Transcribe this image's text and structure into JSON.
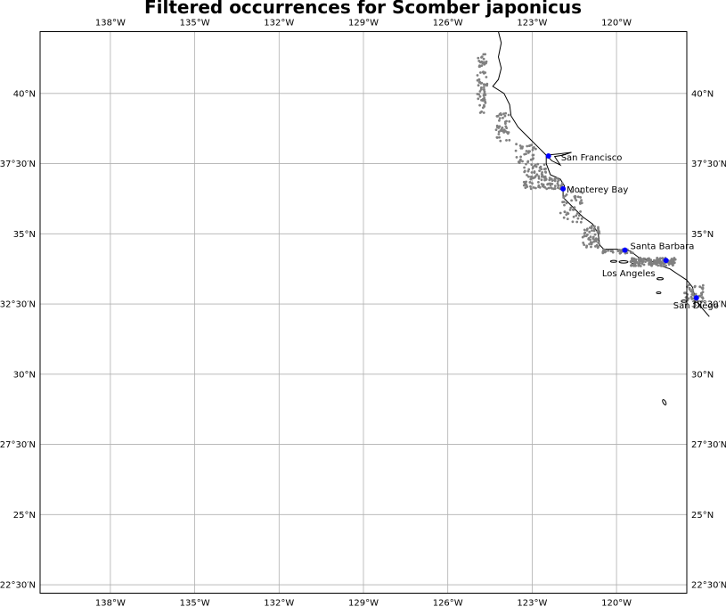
{
  "title": "Filtered occurrences for Scomber japonicus",
  "map": {
    "projection": "plate-carree",
    "extent": {
      "lon": [
        -140.5,
        -117.5
      ],
      "lat": [
        22.2,
        42.2
      ]
    },
    "gridlines": true,
    "grid_color": "#b0b0b0",
    "coast_color": "#000000",
    "occurrence_color": "#808080",
    "city_color": "#0000ff"
  },
  "axes": {
    "lon_ticks": [
      {
        "value": -138,
        "label": "138°W"
      },
      {
        "value": -135,
        "label": "135°W"
      },
      {
        "value": -132,
        "label": "132°W"
      },
      {
        "value": -129,
        "label": "129°W"
      },
      {
        "value": -126,
        "label": "126°W"
      },
      {
        "value": -123,
        "label": "123°W"
      },
      {
        "value": -120,
        "label": "120°W"
      }
    ],
    "lat_ticks": [
      {
        "value": 40,
        "label": "40°N"
      },
      {
        "value": 37.5,
        "label": "37°30′N"
      },
      {
        "value": 35,
        "label": "35°N"
      },
      {
        "value": 32.5,
        "label": "32°30′N"
      },
      {
        "value": 30,
        "label": "30°N"
      },
      {
        "value": 27.5,
        "label": "27°30′N"
      },
      {
        "value": 25,
        "label": "25°N"
      },
      {
        "value": 22.5,
        "label": "22°30′N"
      }
    ]
  },
  "cities": [
    {
      "name": "San Francisco",
      "lon": -122.42,
      "lat": 37.77
    },
    {
      "name": "Monterey Bay",
      "lon": -121.9,
      "lat": 36.6
    },
    {
      "name": "Santa Barbara",
      "lon": -119.7,
      "lat": 34.42
    },
    {
      "name": "Los Angeles",
      "lon": -118.24,
      "lat": 34.05
    },
    {
      "name": "San Diego",
      "lon": -117.16,
      "lat": 32.72
    }
  ],
  "coastline": [
    [
      -124.2,
      42.2
    ],
    [
      -124.1,
      41.8
    ],
    [
      -124.2,
      41.3
    ],
    [
      -124.1,
      40.9
    ],
    [
      -124.2,
      40.5
    ],
    [
      -124.4,
      40.25
    ],
    [
      -124.0,
      40.0
    ],
    [
      -123.8,
      39.6
    ],
    [
      -123.75,
      39.2
    ],
    [
      -123.5,
      38.8
    ],
    [
      -123.0,
      38.3
    ],
    [
      -122.7,
      38.0
    ],
    [
      -122.5,
      37.8
    ],
    [
      -122.5,
      37.5
    ],
    [
      -122.35,
      37.1
    ],
    [
      -122.0,
      36.95
    ],
    [
      -121.85,
      36.7
    ],
    [
      -121.9,
      36.55
    ],
    [
      -121.9,
      36.3
    ],
    [
      -121.5,
      35.9
    ],
    [
      -121.2,
      35.6
    ],
    [
      -120.85,
      35.35
    ],
    [
      -120.65,
      35.0
    ],
    [
      -120.6,
      34.6
    ],
    [
      -120.45,
      34.45
    ],
    [
      -120.0,
      34.45
    ],
    [
      -119.5,
      34.38
    ],
    [
      -119.2,
      34.15
    ],
    [
      -118.8,
      34.02
    ],
    [
      -118.5,
      34.0
    ],
    [
      -118.4,
      33.85
    ],
    [
      -118.1,
      33.75
    ],
    [
      -117.8,
      33.55
    ],
    [
      -117.5,
      33.35
    ],
    [
      -117.3,
      33.1
    ],
    [
      -117.2,
      32.7
    ],
    [
      -117.0,
      32.4
    ],
    [
      -116.7,
      32.05
    ]
  ],
  "occurrence_regions": [
    {
      "lon": [
        -124.95,
        -124.6
      ],
      "lat": [
        39.3,
        41.4
      ],
      "n": 70
    },
    {
      "lon": [
        -124.3,
        -123.8
      ],
      "lat": [
        38.3,
        39.3
      ],
      "n": 45
    },
    {
      "lon": [
        -123.6,
        -122.8
      ],
      "lat": [
        37.5,
        38.2
      ],
      "n": 35
    },
    {
      "lon": [
        -123.3,
        -122.5
      ],
      "lat": [
        36.6,
        37.5
      ],
      "n": 70
    },
    {
      "lon": [
        -122.6,
        -121.9
      ],
      "lat": [
        36.6,
        37.0
      ],
      "n": 40
    },
    {
      "lon": [
        -122.0,
        -121.2
      ],
      "lat": [
        35.4,
        36.5
      ],
      "n": 45
    },
    {
      "lon": [
        -121.2,
        -120.6
      ],
      "lat": [
        34.5,
        35.3
      ],
      "n": 55
    },
    {
      "lon": [
        -120.5,
        -119.3
      ],
      "lat": [
        34.3,
        34.45
      ],
      "n": 30
    },
    {
      "lon": [
        -119.5,
        -117.9
      ],
      "lat": [
        33.85,
        34.15
      ],
      "n": 140
    },
    {
      "lon": [
        -117.6,
        -116.9
      ],
      "lat": [
        32.55,
        33.2
      ],
      "n": 45
    }
  ]
}
